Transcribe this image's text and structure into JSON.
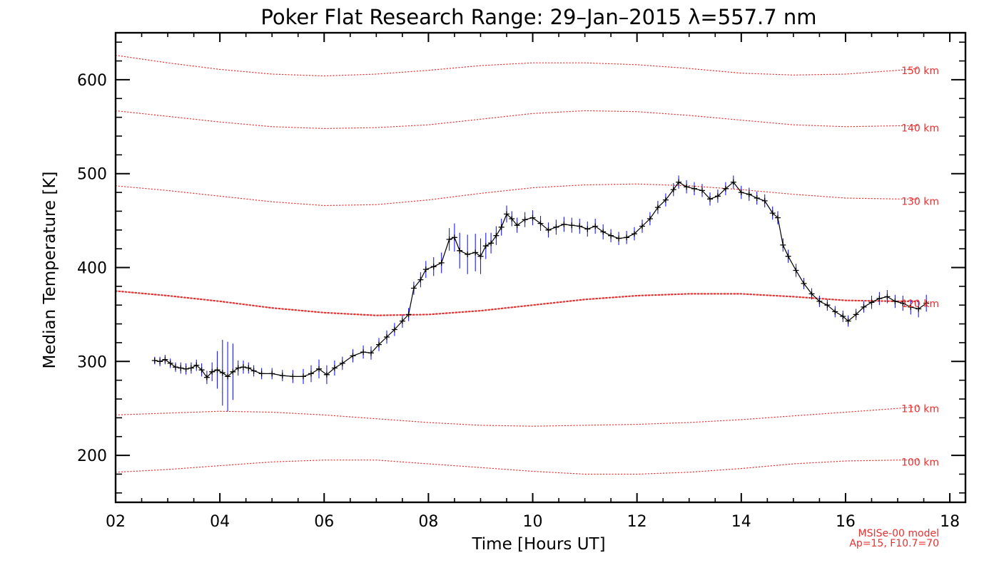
{
  "chart_data": {
    "type": "line",
    "title": "Poker Flat Research Range: 29–Jan–2015 λ=557.7 nm",
    "xlabel": "Time [Hours UT]",
    "ylabel": "Median Temperature [K]",
    "xlim": [
      2,
      18.3
    ],
    "ylim": [
      150,
      650
    ],
    "xticks": [
      2,
      4,
      6,
      8,
      10,
      12,
      14,
      16,
      18
    ],
    "xtick_labels": [
      "02",
      "04",
      "06",
      "08",
      "10",
      "12",
      "14",
      "16",
      "18"
    ],
    "yticks": [
      200,
      300,
      400,
      500,
      600
    ],
    "ytick_labels": [
      "200",
      "300",
      "400",
      "500",
      "600"
    ],
    "grid": false,
    "note_lines": [
      "MSISe-00 model",
      "Ap=15, F10.7=70"
    ],
    "series": [
      {
        "kind": "measurement",
        "color": "#000000",
        "error_color": "#1a1aff",
        "x": [
          2.75,
          2.85,
          2.95,
          3.05,
          3.15,
          3.25,
          3.35,
          3.45,
          3.55,
          3.65,
          3.75,
          3.85,
          3.95,
          4.05,
          4.15,
          4.25,
          4.35,
          4.45,
          4.55,
          4.65,
          4.8,
          5.0,
          5.2,
          5.4,
          5.6,
          5.75,
          5.9,
          6.05,
          6.2,
          6.35,
          6.55,
          6.75,
          6.9,
          7.05,
          7.2,
          7.35,
          7.5,
          7.62,
          7.72,
          7.85,
          7.95,
          8.1,
          8.25,
          8.4,
          8.5,
          8.6,
          8.75,
          8.9,
          9.0,
          9.1,
          9.2,
          9.3,
          9.4,
          9.5,
          9.6,
          9.7,
          9.85,
          10.0,
          10.15,
          10.3,
          10.45,
          10.6,
          10.75,
          10.9,
          11.05,
          11.2,
          11.35,
          11.5,
          11.65,
          11.8,
          11.95,
          12.1,
          12.25,
          12.4,
          12.55,
          12.7,
          12.8,
          12.95,
          13.1,
          13.25,
          13.4,
          13.55,
          13.7,
          13.85,
          14.0,
          14.15,
          14.3,
          14.45,
          14.6,
          14.7,
          14.8,
          14.9,
          15.05,
          15.2,
          15.35,
          15.5,
          15.65,
          15.8,
          15.95,
          16.05,
          16.2,
          16.35,
          16.5,
          16.65,
          16.8,
          16.95,
          17.1,
          17.25,
          17.4,
          17.55
        ],
        "y": [
          301,
          300,
          302,
          298,
          294,
          293,
          292,
          293,
          296,
          291,
          283,
          289,
          291,
          288,
          284,
          289,
          293,
          294,
          293,
          290,
          287,
          287,
          285,
          284,
          284,
          287,
          292,
          286,
          293,
          298,
          306,
          310,
          309,
          318,
          326,
          334,
          343,
          350,
          378,
          387,
          398,
          401,
          405,
          430,
          432,
          418,
          414,
          416,
          412,
          423,
          426,
          434,
          443,
          457,
          452,
          445,
          451,
          453,
          447,
          440,
          443,
          446,
          445,
          444,
          441,
          444,
          438,
          434,
          431,
          432,
          436,
          444,
          452,
          464,
          472,
          483,
          491,
          486,
          484,
          482,
          473,
          476,
          484,
          491,
          480,
          478,
          474,
          471,
          458,
          453,
          424,
          412,
          397,
          383,
          372,
          364,
          360,
          353,
          348,
          343,
          350,
          358,
          363,
          367,
          369,
          364,
          362,
          358,
          356,
          362
        ],
        "err": [
          4,
          5,
          5,
          5,
          5,
          6,
          6,
          6,
          6,
          7,
          7,
          10,
          20,
          35,
          37,
          30,
          8,
          7,
          6,
          6,
          6,
          6,
          6,
          7,
          8,
          9,
          10,
          10,
          8,
          7,
          7,
          7,
          7,
          7,
          7,
          7,
          7,
          7,
          7,
          8,
          9,
          10,
          11,
          12,
          15,
          19,
          21,
          20,
          19,
          14,
          11,
          10,
          9,
          9,
          8,
          8,
          8,
          8,
          8,
          8,
          8,
          8,
          8,
          8,
          8,
          8,
          8,
          7,
          7,
          7,
          7,
          7,
          7,
          7,
          7,
          7,
          7,
          7,
          7,
          7,
          7,
          7,
          7,
          7,
          7,
          7,
          7,
          7,
          7,
          7,
          7,
          7,
          7,
          6,
          6,
          6,
          6,
          6,
          6,
          6,
          6,
          6,
          7,
          7,
          7,
          7,
          8,
          8,
          9,
          9
        ]
      },
      {
        "kind": "model",
        "name": "100 km",
        "color": "#e83030",
        "x": [
          2.0,
          3.0,
          4.0,
          5.0,
          6.0,
          7.0,
          8.0,
          9.0,
          10.0,
          11.0,
          12.0,
          13.0,
          14.0,
          15.0,
          16.0,
          17.0,
          17.4
        ],
        "y": [
          182,
          185,
          189,
          193,
          195,
          195,
          191,
          187,
          183,
          180,
          180,
          182,
          186,
          191,
          194,
          195,
          195
        ]
      },
      {
        "kind": "model",
        "name": "110 km",
        "color": "#e83030",
        "x": [
          2.0,
          3.0,
          4.0,
          5.0,
          6.0,
          7.0,
          8.0,
          9.0,
          10.0,
          11.0,
          12.0,
          13.0,
          14.0,
          15.0,
          16.0,
          17.0,
          17.4
        ],
        "y": [
          243,
          245,
          247,
          246,
          243,
          239,
          235,
          232,
          231,
          232,
          233,
          235,
          238,
          242,
          246,
          250,
          252
        ]
      },
      {
        "kind": "model",
        "name": "120 km",
        "color": "#e83030",
        "x": [
          2.0,
          3.0,
          4.0,
          5.0,
          6.0,
          7.0,
          8.0,
          9.0,
          10.0,
          11.0,
          12.0,
          13.0,
          14.0,
          15.0,
          16.0,
          17.0,
          17.4
        ],
        "y": [
          375,
          370,
          364,
          357,
          352,
          349,
          350,
          354,
          360,
          366,
          370,
          372,
          372,
          369,
          365,
          364,
          364
        ]
      },
      {
        "kind": "model",
        "name": "130 km",
        "color": "#e83030",
        "x": [
          2.0,
          3.0,
          4.0,
          5.0,
          6.0,
          7.0,
          8.0,
          9.0,
          10.0,
          11.0,
          12.0,
          13.0,
          14.0,
          15.0,
          16.0,
          17.0,
          17.4
        ],
        "y": [
          487,
          482,
          476,
          470,
          466,
          467,
          472,
          479,
          485,
          488,
          489,
          487,
          483,
          478,
          474,
          473,
          473
        ]
      },
      {
        "kind": "model",
        "name": "140 km",
        "color": "#e83030",
        "x": [
          2.0,
          3.0,
          4.0,
          5.0,
          6.0,
          7.0,
          8.0,
          9.0,
          10.0,
          11.0,
          12.0,
          13.0,
          14.0,
          15.0,
          16.0,
          17.0,
          17.4
        ],
        "y": [
          567,
          561,
          555,
          550,
          548,
          549,
          552,
          558,
          564,
          567,
          566,
          562,
          557,
          552,
          550,
          551,
          551
        ]
      },
      {
        "kind": "model",
        "name": "150 km",
        "color": "#e83030",
        "x": [
          2.0,
          3.0,
          4.0,
          5.0,
          6.0,
          7.0,
          8.0,
          9.0,
          10.0,
          11.0,
          12.0,
          13.0,
          14.0,
          15.0,
          16.0,
          17.0,
          17.4
        ],
        "y": [
          626,
          618,
          611,
          606,
          604,
          606,
          610,
          615,
          618,
          618,
          616,
          612,
          607,
          605,
          606,
          610,
          612
        ]
      }
    ]
  }
}
